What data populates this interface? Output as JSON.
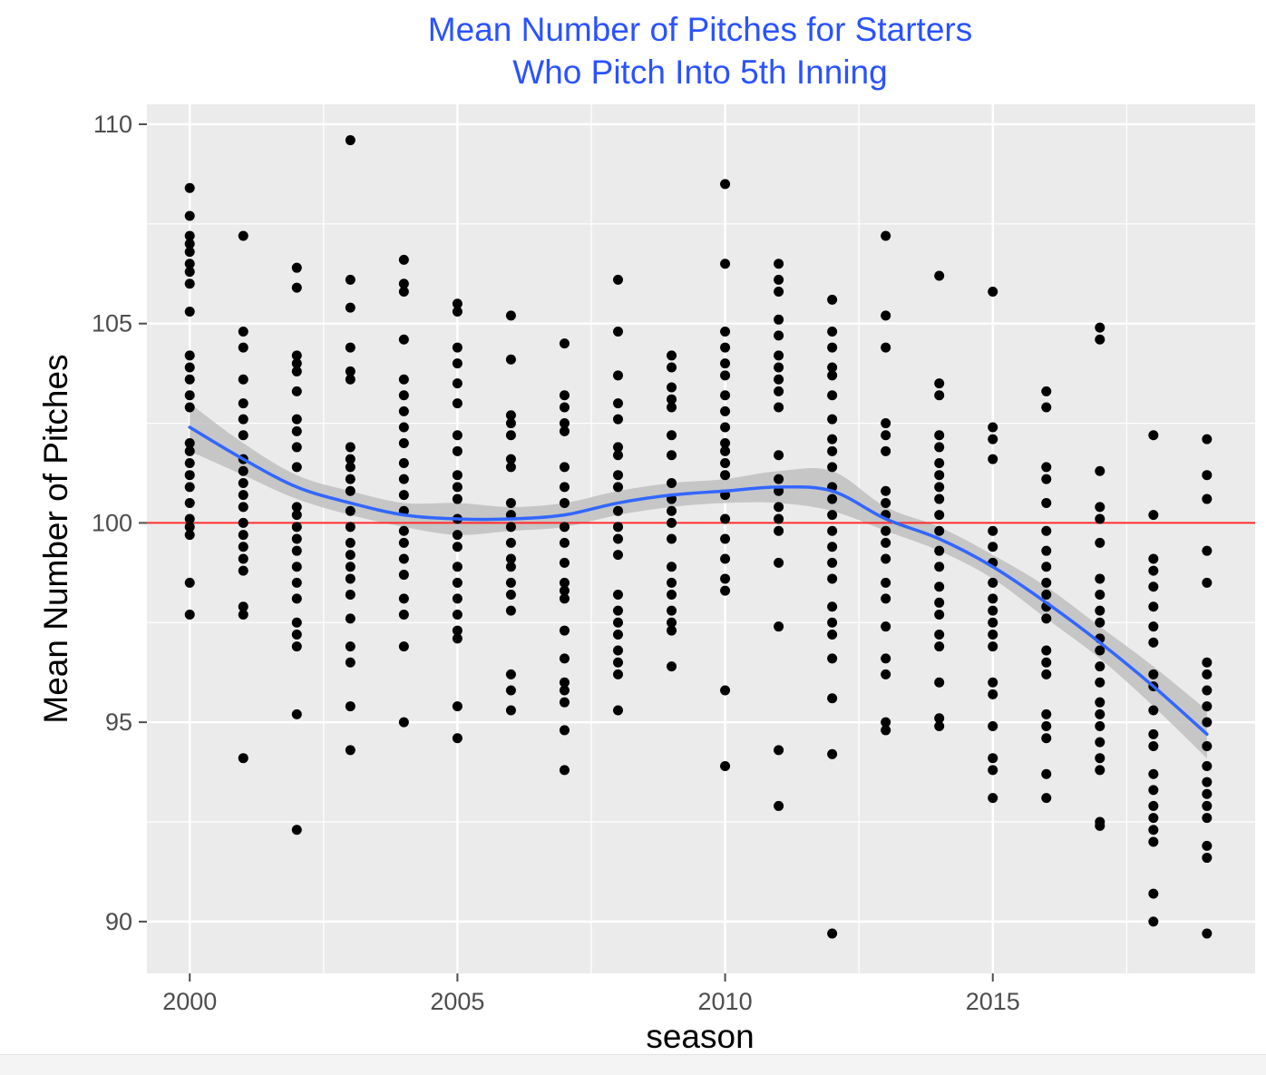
{
  "chart_data": {
    "type": "scatter",
    "title": [
      "Mean Number of Pitches for Starters",
      "Who Pitch Into 5th Inning"
    ],
    "xlabel": "season",
    "ylabel": "Mean Number of Pitches",
    "xlim": [
      1999.2,
      2019.9
    ],
    "ylim": [
      88.7,
      110.5
    ],
    "x_ticks": [
      2000,
      2005,
      2010,
      2015
    ],
    "y_ticks": [
      90,
      95,
      100,
      105,
      110
    ],
    "grid": true,
    "legend": "none",
    "colors": {
      "title": "#2a52ff",
      "panel": "#ebebeb",
      "grid": "#ffffff",
      "points": "#000000",
      "smooth_line": "#3366ff",
      "confidence_band": "#bdbdbd",
      "reference_line": "#ff2a2a"
    },
    "reference_line": {
      "y": 100
    },
    "points": [
      {
        "season": 2000,
        "values": [
          108.4,
          107.7,
          107.2,
          107.0,
          106.8,
          106.5,
          106.3,
          106.0,
          105.3,
          104.2,
          103.9,
          103.6,
          103.2,
          102.9,
          102.0,
          101.8,
          101.5,
          101.2,
          100.9,
          100.5,
          100.1,
          99.9,
          99.7,
          98.5,
          97.7
        ]
      },
      {
        "season": 2001,
        "values": [
          107.2,
          104.8,
          104.4,
          103.6,
          103.0,
          102.6,
          102.2,
          101.6,
          101.3,
          101.0,
          100.7,
          100.4,
          100.0,
          99.7,
          99.4,
          99.1,
          98.8,
          97.9,
          97.7,
          94.1
        ]
      },
      {
        "season": 2002,
        "values": [
          106.4,
          105.9,
          104.2,
          104.0,
          103.8,
          103.3,
          102.6,
          102.3,
          101.9,
          101.4,
          100.4,
          100.2,
          99.9,
          99.6,
          99.3,
          98.9,
          98.5,
          98.1,
          97.5,
          97.2,
          96.9,
          95.2,
          92.3
        ]
      },
      {
        "season": 2003,
        "values": [
          109.6,
          106.1,
          105.4,
          104.4,
          103.8,
          103.6,
          101.9,
          101.6,
          101.4,
          101.1,
          100.8,
          100.3,
          99.9,
          99.5,
          99.2,
          98.9,
          98.6,
          98.2,
          97.6,
          96.9,
          96.5,
          95.4,
          94.3
        ]
      },
      {
        "season": 2004,
        "values": [
          106.6,
          106.0,
          105.8,
          104.6,
          103.6,
          103.2,
          102.8,
          102.4,
          102.0,
          101.5,
          101.1,
          100.7,
          100.3,
          99.8,
          99.5,
          99.1,
          98.7,
          98.1,
          97.7,
          96.9,
          95.0
        ]
      },
      {
        "season": 2005,
        "values": [
          105.5,
          105.3,
          104.4,
          104.0,
          103.5,
          103.0,
          102.2,
          101.8,
          101.2,
          100.9,
          100.6,
          100.1,
          99.7,
          99.4,
          98.9,
          98.5,
          98.1,
          97.7,
          97.3,
          97.1,
          95.4,
          94.6
        ]
      },
      {
        "season": 2006,
        "values": [
          105.2,
          104.1,
          102.7,
          102.5,
          102.2,
          101.6,
          101.4,
          100.5,
          100.2,
          99.9,
          99.5,
          99.1,
          98.9,
          98.5,
          98.2,
          97.8,
          96.2,
          95.8,
          95.3
        ]
      },
      {
        "season": 2007,
        "values": [
          104.5,
          103.2,
          102.9,
          102.5,
          102.3,
          101.4,
          100.9,
          100.5,
          99.9,
          99.5,
          99.0,
          98.5,
          98.3,
          98.1,
          97.3,
          96.6,
          96.0,
          95.8,
          95.5,
          94.8,
          93.8
        ]
      },
      {
        "season": 2008,
        "values": [
          106.1,
          104.8,
          103.7,
          103.0,
          102.6,
          101.9,
          101.7,
          101.2,
          100.9,
          100.3,
          99.9,
          99.6,
          99.2,
          98.2,
          97.8,
          97.5,
          97.2,
          96.8,
          96.5,
          96.2,
          95.3
        ]
      },
      {
        "season": 2009,
        "values": [
          104.2,
          103.9,
          103.4,
          103.1,
          102.9,
          102.2,
          101.7,
          101.0,
          100.6,
          100.3,
          100.0,
          99.6,
          98.9,
          98.5,
          98.2,
          97.8,
          97.5,
          97.3,
          96.4
        ]
      },
      {
        "season": 2010,
        "values": [
          108.5,
          106.5,
          104.8,
          104.4,
          104.0,
          103.7,
          103.2,
          102.8,
          102.4,
          102.0,
          101.8,
          101.5,
          101.2,
          100.7,
          100.1,
          99.6,
          99.1,
          98.6,
          98.3,
          95.8,
          93.9
        ]
      },
      {
        "season": 2011,
        "values": [
          106.5,
          106.1,
          105.8,
          105.1,
          104.7,
          104.2,
          103.9,
          103.6,
          103.3,
          102.9,
          101.7,
          101.1,
          100.8,
          100.4,
          100.1,
          99.8,
          99.0,
          97.4,
          94.3,
          92.9
        ]
      },
      {
        "season": 2012,
        "values": [
          105.6,
          104.8,
          104.4,
          103.9,
          103.7,
          103.2,
          102.6,
          102.1,
          101.8,
          101.4,
          100.9,
          100.6,
          100.2,
          99.8,
          99.4,
          99.0,
          98.6,
          97.9,
          97.5,
          97.2,
          96.6,
          95.6,
          94.2,
          89.7
        ]
      },
      {
        "season": 2013,
        "values": [
          107.2,
          105.2,
          104.4,
          102.5,
          102.2,
          101.8,
          100.8,
          100.5,
          100.2,
          99.8,
          99.5,
          99.1,
          98.5,
          98.1,
          97.4,
          96.6,
          96.2,
          95.0,
          94.8
        ]
      },
      {
        "season": 2014,
        "values": [
          106.2,
          103.5,
          103.2,
          102.2,
          101.9,
          101.5,
          101.2,
          100.9,
          100.6,
          100.2,
          99.8,
          99.3,
          98.9,
          98.4,
          98.0,
          97.7,
          97.2,
          96.9,
          96.0,
          95.1,
          94.9
        ]
      },
      {
        "season": 2015,
        "values": [
          105.8,
          102.4,
          102.1,
          101.6,
          99.8,
          99.4,
          99.0,
          98.5,
          98.1,
          97.8,
          97.5,
          97.2,
          96.9,
          96.0,
          95.7,
          94.9,
          94.1,
          93.8,
          93.1
        ]
      },
      {
        "season": 2016,
        "values": [
          103.3,
          102.9,
          101.4,
          101.1,
          100.5,
          99.8,
          99.3,
          98.9,
          98.5,
          98.2,
          97.9,
          97.6,
          96.8,
          96.5,
          96.2,
          95.2,
          94.9,
          94.6,
          93.7,
          93.1
        ]
      },
      {
        "season": 2017,
        "values": [
          104.9,
          104.6,
          101.3,
          100.4,
          100.1,
          99.5,
          98.6,
          98.2,
          97.8,
          97.5,
          97.1,
          96.8,
          96.4,
          96.0,
          95.5,
          95.2,
          94.9,
          94.5,
          94.1,
          93.8,
          92.5,
          92.4
        ]
      },
      {
        "season": 2018,
        "values": [
          102.2,
          100.2,
          99.1,
          98.8,
          98.4,
          97.9,
          97.4,
          97.0,
          96.2,
          95.9,
          95.3,
          94.7,
          94.4,
          93.7,
          93.3,
          92.9,
          92.6,
          92.3,
          92.0,
          90.7,
          90.0
        ]
      },
      {
        "season": 2019,
        "values": [
          102.1,
          101.2,
          100.6,
          99.3,
          98.5,
          96.5,
          96.2,
          95.8,
          95.4,
          95.0,
          94.4,
          93.9,
          93.5,
          93.2,
          92.9,
          92.6,
          91.9,
          91.6,
          89.7
        ]
      }
    ],
    "smooth_line": {
      "x": [
        2000,
        2001,
        2002,
        2003,
        2004,
        2005,
        2006,
        2007,
        2008,
        2009,
        2010,
        2011,
        2012,
        2013,
        2014,
        2015,
        2016,
        2017,
        2018,
        2019
      ],
      "y": [
        102.4,
        101.6,
        100.9,
        100.5,
        100.2,
        100.1,
        100.1,
        100.2,
        100.5,
        100.7,
        100.8,
        100.9,
        100.8,
        100.1,
        99.6,
        98.9,
        98.0,
        97.0,
        95.9,
        94.7
      ],
      "band_lower": [
        101.8,
        101.2,
        100.6,
        100.2,
        99.9,
        99.7,
        99.8,
        99.9,
        100.2,
        100.4,
        100.5,
        100.5,
        100.3,
        99.8,
        99.3,
        98.6,
        97.6,
        96.6,
        95.4,
        94.1
      ],
      "band_upper": [
        103.0,
        102.0,
        101.2,
        100.8,
        100.5,
        100.5,
        100.4,
        100.5,
        100.8,
        101.0,
        101.1,
        101.3,
        101.3,
        100.4,
        99.9,
        99.2,
        98.4,
        97.4,
        96.4,
        95.3
      ]
    }
  }
}
